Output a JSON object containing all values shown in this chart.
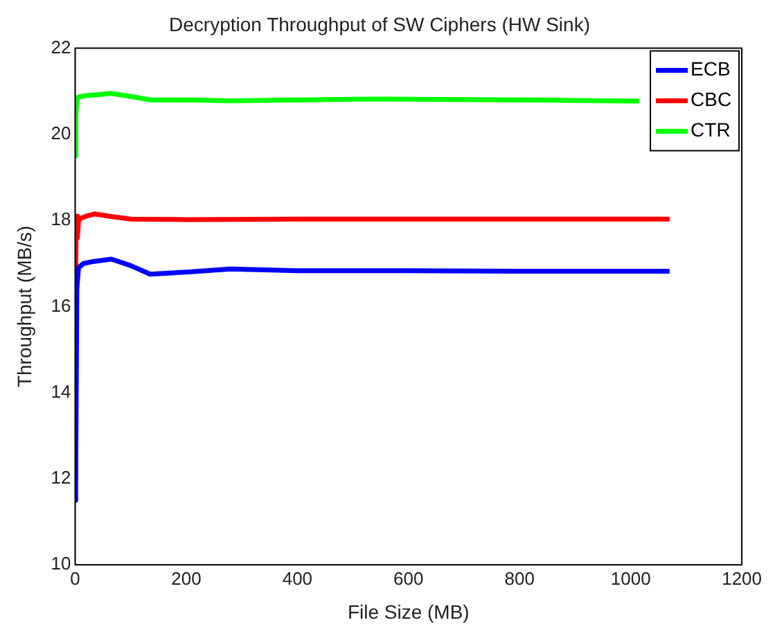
{
  "chart_data": {
    "type": "line",
    "title": "Decryption Throughput of SW Ciphers (HW Sink)",
    "xlabel": "File Size (MB)",
    "ylabel": "Throughput (MB/s)",
    "xlim": [
      0,
      1200
    ],
    "xticks": [
      0,
      200,
      400,
      600,
      800,
      1000,
      1200
    ],
    "ylim": [
      10,
      22
    ],
    "yticks": [
      10,
      12,
      14,
      16,
      18,
      20,
      22
    ],
    "grid": false,
    "legend": "top right",
    "marker": "none",
    "line_style": "solid",
    "series": [
      {
        "name": "ECB",
        "color": "#0000ff",
        "x": [
          0,
          1,
          3,
          6,
          15,
          35,
          65,
          100,
          135,
          200,
          280,
          400,
          600,
          800,
          1070
        ],
        "values": [
          11.5,
          12.1,
          16.4,
          16.9,
          17.0,
          17.05,
          17.1,
          16.95,
          16.75,
          16.8,
          16.87,
          16.83,
          16.83,
          16.82,
          16.82
        ]
      },
      {
        "name": "CBC",
        "color": "#ff0000",
        "x": [
          0,
          1,
          2,
          4,
          6,
          10,
          20,
          35,
          60,
          100,
          200,
          400,
          600,
          800,
          1070
        ],
        "values": [
          12.0,
          17.0,
          18.1,
          17.6,
          18.0,
          18.05,
          18.1,
          18.15,
          18.1,
          18.03,
          18.02,
          18.03,
          18.03,
          18.03,
          18.03
        ]
      },
      {
        "name": "CTR",
        "color": "#00ff00",
        "x": [
          0,
          1,
          3,
          10,
          20,
          40,
          65,
          100,
          135,
          200,
          280,
          400,
          550,
          800,
          1015
        ],
        "values": [
          19.5,
          20.4,
          20.85,
          20.88,
          20.9,
          20.92,
          20.95,
          20.88,
          20.8,
          20.8,
          20.78,
          20.8,
          20.82,
          20.8,
          20.77
        ]
      }
    ]
  }
}
